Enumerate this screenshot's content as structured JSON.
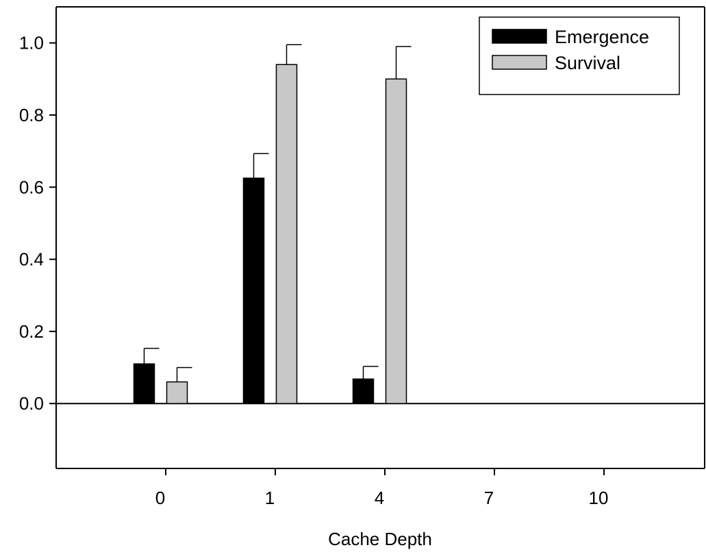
{
  "chart_data": {
    "type": "bar",
    "categories": [
      "0",
      "1",
      "4",
      "7",
      "10"
    ],
    "series": [
      {
        "name": "Emergence",
        "color": "#000000",
        "values": [
          0.11,
          0.625,
          0.068,
          0.0,
          0.0
        ],
        "errors": [
          0.043,
          0.068,
          0.035,
          0.0,
          0.0
        ]
      },
      {
        "name": "Survival",
        "color": "#c8c8c8",
        "values": [
          0.06,
          0.94,
          0.9,
          0.0,
          0.0
        ],
        "errors": [
          0.04,
          0.055,
          0.09,
          0.0,
          0.0
        ]
      }
    ],
    "xlabel": "Cache Depth",
    "ylabel": "",
    "ylim": [
      -0.18,
      1.1
    ],
    "yticks": [
      0.0,
      0.2,
      0.4,
      0.6,
      0.8,
      1.0
    ],
    "ytick_labels": [
      "0.0",
      "0.2",
      "0.4",
      "0.6",
      "0.8",
      "1.0"
    ],
    "zero_line": true,
    "grid": false,
    "legend_position": "top-right"
  }
}
